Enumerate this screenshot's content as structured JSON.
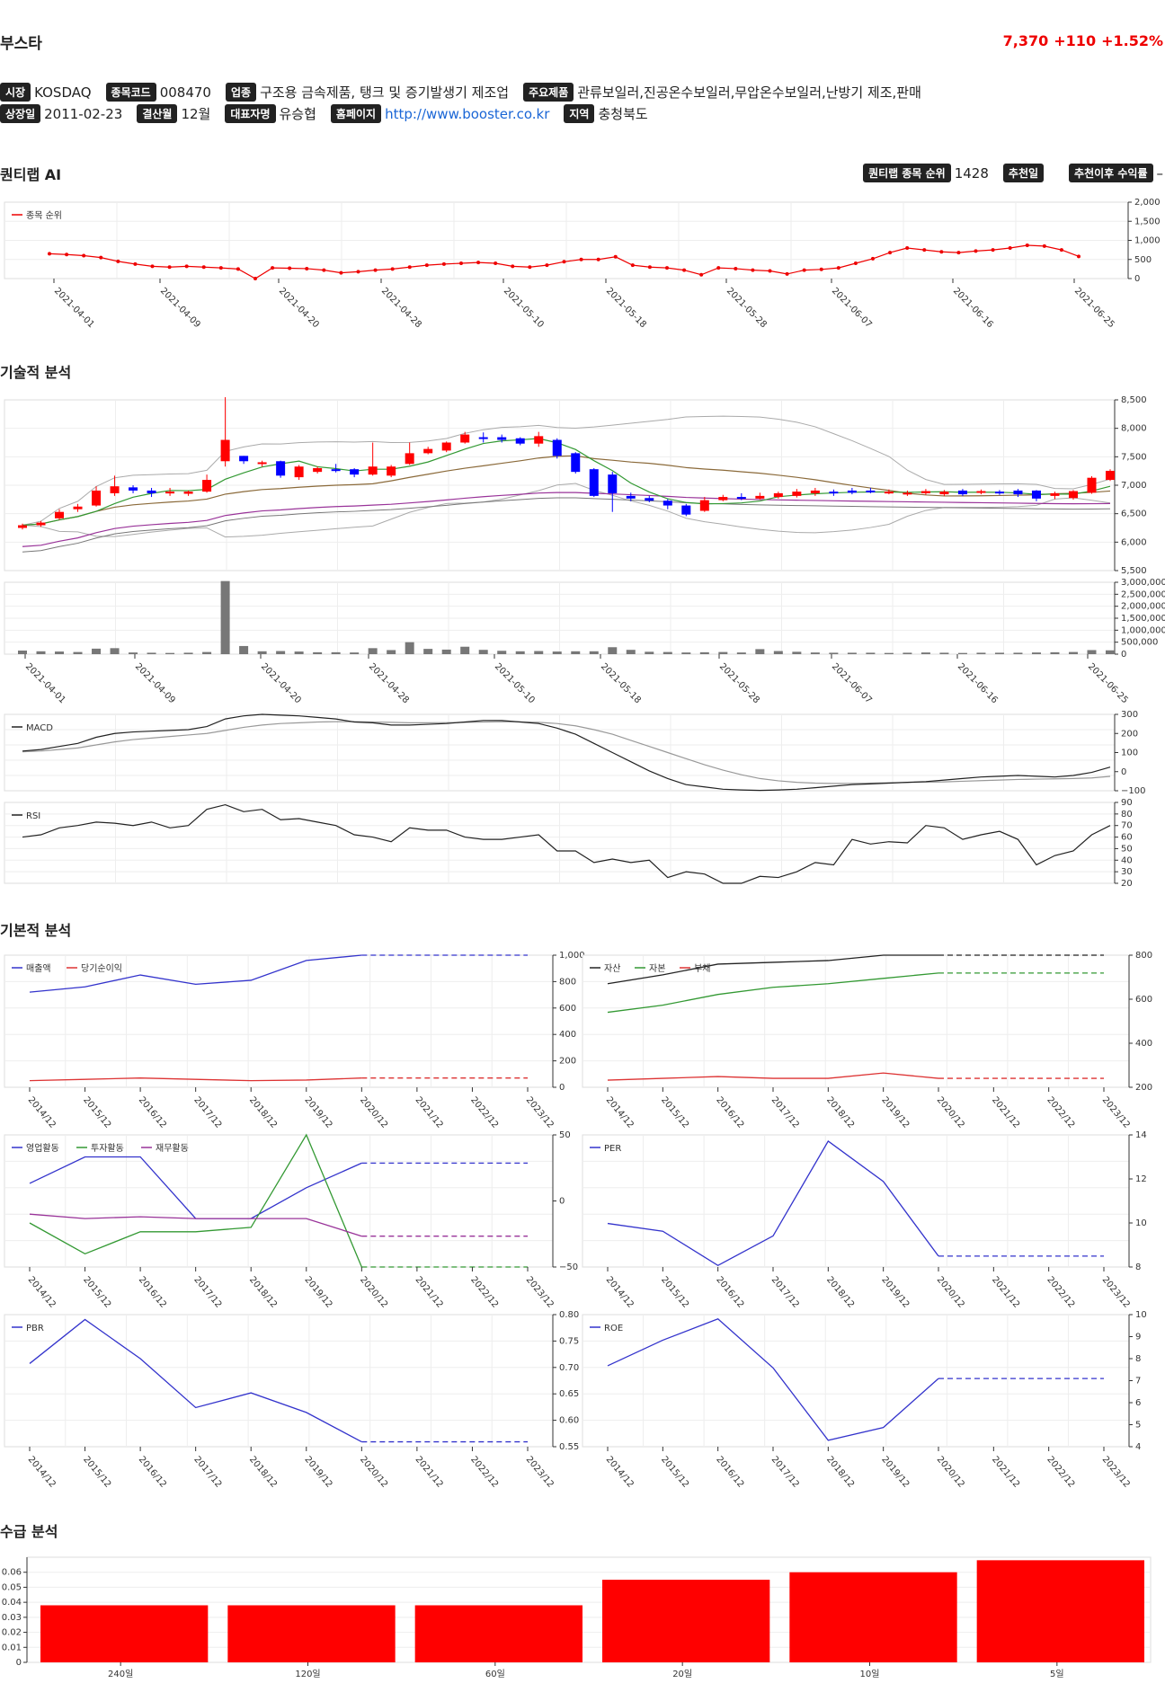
{
  "header": {
    "name": "부스타",
    "price": "7,370",
    "change": "+110",
    "change_pct": "+1.52%"
  },
  "info": {
    "row1": [
      {
        "label": "시장",
        "value": "KOSDAQ"
      },
      {
        "label": "종목코드",
        "value": "008470"
      },
      {
        "label": "업종",
        "value": "구조용 금속제품, 탱크 및 증기발생기 제조업"
      },
      {
        "label": "주요제품",
        "value": "관류보일러,진공온수보일러,무압온수보일러,난방기 제조,판매"
      }
    ],
    "row2": [
      {
        "label": "상장일",
        "value": "2011-02-23"
      },
      {
        "label": "결산월",
        "value": "12월"
      },
      {
        "label": "대표자명",
        "value": "유승협"
      },
      {
        "label": "홈페이지",
        "value": "http://www.booster.co.kr",
        "link": true
      },
      {
        "label": "지역",
        "value": "충청북도"
      }
    ]
  },
  "sections": {
    "quant": "퀀티랩 AI",
    "technical": "기술적 분석",
    "fundamental": "기본적 분석",
    "supply": "수급 분석"
  },
  "quant_info": {
    "rank_label": "퀀티랩 종목 순위",
    "rank_value": "1428",
    "rec_day_label": "추천일",
    "rec_return_label": "추천이후 수익률",
    "rec_return_value": "–"
  },
  "date_ticks": [
    "2021-04-01",
    "2021-04-09",
    "2021-04-20",
    "2021-04-28",
    "2021-05-10",
    "2021-05-18",
    "2021-05-28",
    "2021-06-07",
    "2021-06-16",
    "2021-06-25"
  ],
  "year_ticks": [
    "2014/12",
    "2015/12",
    "2016/12",
    "2017/12",
    "2018/12",
    "2019/12",
    "2020/12",
    "2021/12",
    "2022/12",
    "2023/12"
  ],
  "chart_data": [
    {
      "id": "rank",
      "type": "line",
      "series": [
        {
          "name": "종목 순위",
          "color": "#e00",
          "values": [
            1350,
            1370,
            1400,
            1450,
            1550,
            1620,
            1680,
            1700,
            1680,
            1700,
            1720,
            1750,
            2000,
            1720,
            1730,
            1740,
            1780,
            1850,
            1820,
            1780,
            1750,
            1700,
            1650,
            1620,
            1600,
            1580,
            1600,
            1680,
            1700,
            1650,
            1560,
            1500,
            1500,
            1430,
            1650,
            1700,
            1720,
            1780,
            1900,
            1720,
            1740,
            1780,
            1800,
            1880,
            1780,
            1760,
            1720,
            1600,
            1480,
            1320,
            1200,
            1250,
            1300,
            1320,
            1280,
            1250,
            1200,
            1130,
            1150,
            1250,
            1420
          ]
        }
      ],
      "ylim": [
        0,
        2000
      ],
      "yticks": [
        "0",
        "500",
        "1,000",
        "1,500",
        "2,000"
      ]
    },
    {
      "id": "price",
      "type": "candlestick",
      "ylim": [
        5500,
        8700
      ],
      "yticks": [
        "5,500",
        "6,000",
        "6,500",
        "7,000",
        "7,500",
        "8,000",
        "8,500"
      ],
      "open": [
        6300,
        6350,
        6480,
        6650,
        6720,
        6950,
        7060,
        7000,
        6950,
        6940,
        6980,
        7550,
        7650,
        7500,
        7550,
        7250,
        7350,
        7400,
        7400,
        7300,
        7280,
        7500,
        7700,
        7750,
        7900,
        8000,
        8000,
        7980,
        7880,
        7950,
        7700,
        7400,
        7300,
        6900,
        6860,
        6810,
        6720,
        6620,
        6820,
        6880,
        6850,
        6880,
        6900,
        6950,
        6980,
        7000,
        7000,
        6960,
        6950,
        6950,
        6930,
        7000,
        6960,
        6980,
        7000,
        7000,
        6900,
        6860,
        6960,
        7200
      ],
      "close": [
        6350,
        6400,
        6600,
        6700,
        7000,
        7080,
        7000,
        6950,
        6980,
        6980,
        7200,
        7950,
        7550,
        7530,
        7280,
        7450,
        7420,
        7380,
        7300,
        7450,
        7450,
        7700,
        7780,
        7900,
        8050,
        7980,
        7950,
        7880,
        8020,
        7650,
        7350,
        6900,
        6950,
        6850,
        6810,
        6720,
        6550,
        6820,
        6880,
        6870,
        6900,
        6950,
        6980,
        7000,
        6950,
        6960,
        6980,
        6980,
        6960,
        6990,
        6980,
        6930,
        6990,
        6950,
        6930,
        6850,
        6950,
        6990,
        7240,
        7370
      ],
      "high": [
        6380,
        6430,
        6650,
        6750,
        7080,
        7280,
        7100,
        7050,
        7050,
        7000,
        7300,
        8750,
        7650,
        7560,
        7560,
        7480,
        7450,
        7500,
        7420,
        7900,
        7480,
        7900,
        7820,
        7920,
        8100,
        8090,
        8050,
        8000,
        8100,
        7980,
        7720,
        7420,
        7350,
        6960,
        6900,
        6840,
        6750,
        6880,
        6920,
        6950,
        6960,
        6980,
        7030,
        7050,
        7020,
        7050,
        7050,
        7020,
        7000,
        7030,
        7010,
        7030,
        7020,
        7010,
        7030,
        7010,
        6980,
        7010,
        7270,
        7400
      ],
      "low": [
        6270,
        6320,
        6450,
        6600,
        6700,
        6900,
        6950,
        6880,
        6900,
        6900,
        6960,
        7450,
        7500,
        7450,
        7240,
        7200,
        7320,
        7340,
        7250,
        7280,
        7250,
        7480,
        7680,
        7720,
        7880,
        7900,
        7900,
        7850,
        7820,
        7600,
        7320,
        6880,
        6600,
        6800,
        6780,
        6650,
        6520,
        6600,
        6800,
        6820,
        6830,
        6850,
        6870,
        6900,
        6900,
        6930,
        6950,
        6930,
        6900,
        6920,
        6900,
        6900,
        6930,
        6920,
        6880,
        6800,
        6840,
        6830,
        6940,
        7180
      ],
      "volume": [
        150000,
        120000,
        110000,
        90000,
        230000,
        250000,
        70000,
        60000,
        50000,
        60000,
        90000,
        3050000,
        340000,
        120000,
        130000,
        110000,
        80000,
        80000,
        70000,
        250000,
        170000,
        500000,
        220000,
        190000,
        310000,
        180000,
        140000,
        120000,
        130000,
        110000,
        120000,
        120000,
        290000,
        180000,
        100000,
        90000,
        70000,
        80000,
        90000,
        70000,
        210000,
        130000,
        100000,
        70000,
        60000,
        60000,
        60000,
        50000,
        60000,
        70000,
        60000,
        50000,
        60000,
        60000,
        60000,
        70000,
        80000,
        90000,
        170000,
        160000
      ],
      "vol_yticks": [
        "0",
        "500,000",
        "1,000,000",
        "1,500,000",
        "2,000,000",
        "2,500,000",
        "3,000,000"
      ]
    },
    {
      "id": "macd",
      "type": "line",
      "ylim": [
        -150,
        350
      ],
      "yticks": [
        "−100",
        "0",
        "100",
        "200",
        "300"
      ],
      "series": [
        {
          "name": "MACD",
          "color": "#222",
          "values": [
            110,
            120,
            140,
            160,
            200,
            225,
            235,
            240,
            245,
            250,
            270,
            320,
            340,
            350,
            345,
            340,
            330,
            320,
            300,
            295,
            280,
            280,
            285,
            290,
            300,
            310,
            310,
            300,
            290,
            260,
            220,
            160,
            100,
            40,
            -20,
            -70,
            -110,
            -125,
            -140,
            -145,
            -148,
            -145,
            -140,
            -130,
            -120,
            -110,
            -105,
            -100,
            -95,
            -90,
            -80,
            -70,
            -60,
            -55,
            -50,
            -55,
            -60,
            -50,
            -30,
            5
          ]
        },
        {
          "name": "signal",
          "color": "#999",
          "values": [
            105,
            110,
            120,
            130,
            150,
            170,
            185,
            195,
            205,
            215,
            225,
            245,
            265,
            280,
            290,
            295,
            300,
            302,
            302,
            300,
            298,
            295,
            295,
            296,
            298,
            300,
            302,
            301,
            298,
            290,
            275,
            250,
            220,
            180,
            140,
            100,
            60,
            20,
            -15,
            -45,
            -70,
            -85,
            -95,
            -100,
            -102,
            -102,
            -100,
            -98,
            -96,
            -94,
            -92,
            -88,
            -84,
            -80,
            -76,
            -74,
            -72,
            -70,
            -66,
            -56
          ]
        }
      ]
    },
    {
      "id": "rsi",
      "type": "line",
      "ylim": [
        20,
        90
      ],
      "yticks": [
        "20",
        "30",
        "40",
        "50",
        "60",
        "70",
        "80",
        "90"
      ],
      "series": [
        {
          "name": "RSI",
          "color": "#222",
          "values": [
            60,
            62,
            68,
            70,
            73,
            72,
            70,
            73,
            68,
            70,
            84,
            88,
            82,
            84,
            75,
            76,
            73,
            70,
            62,
            60,
            56,
            68,
            66,
            66,
            60,
            58,
            58,
            60,
            62,
            48,
            48,
            38,
            41,
            38,
            40,
            25,
            30,
            28,
            20,
            20,
            26,
            25,
            30,
            38,
            36,
            58,
            54,
            56,
            55,
            70,
            68,
            58,
            62,
            65,
            58,
            36,
            44,
            48,
            62,
            70
          ]
        }
      ]
    },
    {
      "id": "sales",
      "type": "line",
      "ylim": [
        0,
        1000
      ],
      "yticks": [
        "0",
        "200",
        "400",
        "600",
        "800",
        "1,000"
      ],
      "series": [
        {
          "name": "매출액",
          "color": "#33c",
          "values": [
            720,
            760,
            850,
            780,
            810,
            960,
            1000,
            1000,
            1000,
            1000
          ]
        },
        {
          "name": "당기순이익",
          "color": "#d33",
          "values": [
            50,
            60,
            70,
            60,
            50,
            55,
            70,
            70,
            70,
            70
          ]
        }
      ],
      "projected_from": 6
    },
    {
      "id": "assets",
      "type": "line",
      "ylim": [
        130,
        870
      ],
      "yticks": [
        "200",
        "400",
        "600",
        "800"
      ],
      "series": [
        {
          "name": "자산",
          "color": "#222",
          "values": [
            710,
            760,
            820,
            830,
            840,
            870,
            870,
            870,
            870,
            870
          ]
        },
        {
          "name": "자본",
          "color": "#393",
          "values": [
            550,
            590,
            650,
            690,
            710,
            740,
            770,
            770,
            770,
            770
          ]
        },
        {
          "name": "부채",
          "color": "#d33",
          "values": [
            170,
            180,
            190,
            180,
            180,
            210,
            180,
            180,
            180,
            180
          ]
        }
      ],
      "projected_from": 6
    },
    {
      "id": "cashflow",
      "type": "line",
      "ylim": [
        -60,
        90
      ],
      "yticks": [
        "−50",
        "0",
        "50"
      ],
      "series": [
        {
          "name": "영업활동",
          "color": "#33c",
          "values": [
            35,
            65,
            65,
            -5,
            -5,
            30,
            58,
            58,
            58,
            58
          ]
        },
        {
          "name": "투자활동",
          "color": "#393",
          "values": [
            -10,
            -45,
            -20,
            -20,
            -15,
            90,
            -60,
            -60,
            -60,
            -60
          ]
        },
        {
          "name": "재무활동",
          "color": "#939",
          "values": [
            0,
            -5,
            -3,
            -5,
            -5,
            -5,
            -25,
            -25,
            -25,
            -25
          ]
        }
      ],
      "projected_from": 6
    },
    {
      "id": "per",
      "type": "line",
      "ylim": [
        7.5,
        16
      ],
      "yticks": [
        "8",
        "10",
        "12",
        "14"
      ],
      "series": [
        {
          "name": "PER",
          "color": "#33c",
          "values": [
            10.3,
            9.8,
            7.6,
            9.5,
            15.6,
            13.0,
            8.2,
            8.2,
            8.2,
            8.2
          ]
        }
      ],
      "projected_from": 6
    },
    {
      "id": "pbr",
      "type": "line",
      "ylim": [
        0.55,
        0.82
      ],
      "yticks": [
        "0.55",
        "0.60",
        "0.65",
        "0.70",
        "0.75",
        "0.80"
      ],
      "series": [
        {
          "name": "PBR",
          "color": "#33c",
          "values": [
            0.72,
            0.81,
            0.73,
            0.63,
            0.66,
            0.62,
            0.56,
            0.56,
            0.56,
            0.56
          ]
        }
      ],
      "projected_from": 6
    },
    {
      "id": "roe",
      "type": "line",
      "ylim": [
        4,
        10.2
      ],
      "yticks": [
        "4",
        "5",
        "6",
        "7",
        "8",
        "9",
        "10"
      ],
      "series": [
        {
          "name": "ROE",
          "color": "#33c",
          "values": [
            7.8,
            9.0,
            10.0,
            7.7,
            4.3,
            4.9,
            7.2,
            7.2,
            7.2,
            7.2
          ]
        }
      ],
      "projected_from": 6
    },
    {
      "id": "supply",
      "type": "bar",
      "categories": [
        "240일",
        "120일",
        "60일",
        "20일",
        "10일",
        "5일"
      ],
      "values": [
        0.038,
        0.038,
        0.038,
        0.055,
        0.06,
        0.068
      ],
      "ylim": [
        0,
        0.07
      ],
      "yticks": [
        "0",
        "0.01",
        "0.02",
        "0.03",
        "0.04",
        "0.05",
        "0.06"
      ],
      "color": "#f00"
    }
  ]
}
